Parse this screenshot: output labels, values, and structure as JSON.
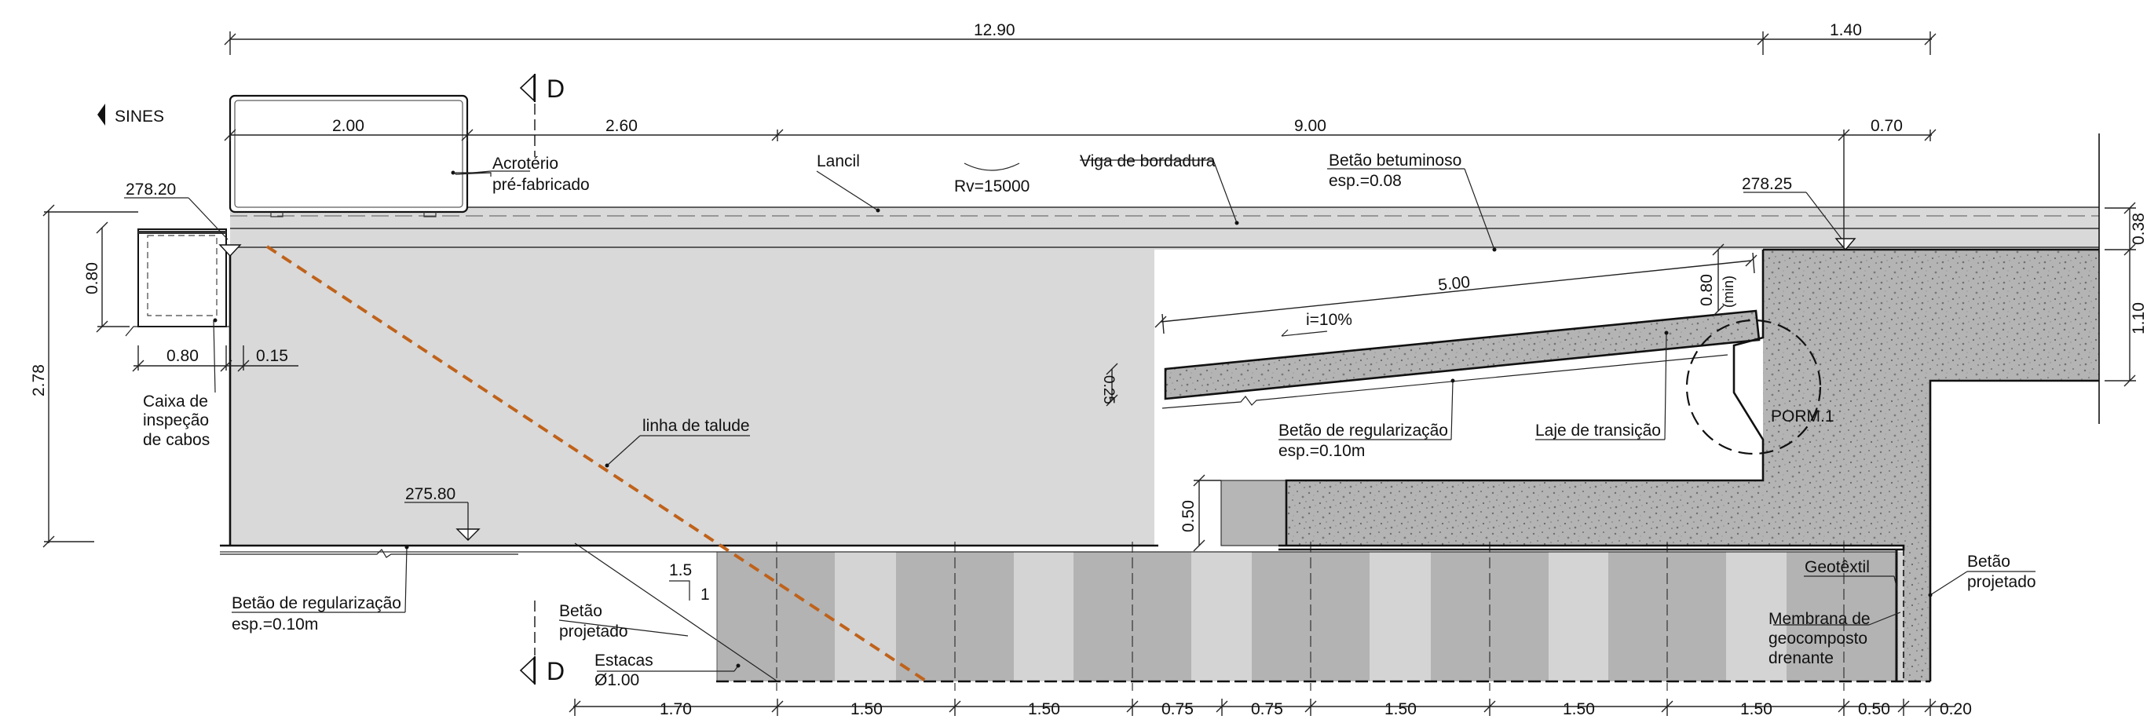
{
  "colors": {
    "fill": "#d9d9d9",
    "concrete": "#b0b0b0",
    "pile_dark": "#b3b3b3",
    "pile_light": "#d4d4d4",
    "slope_line": "#c0621a",
    "ink": "#111111"
  },
  "direction": {
    "label": "SINES"
  },
  "section_marker": {
    "top": "D",
    "bottom": "D"
  },
  "dimensions": {
    "top_12_90": "12.90",
    "top_1_40": "1.40",
    "w_2_00": "2.00",
    "w_2_60": "2.60",
    "w_9_00": "9.00",
    "w_0_70": "0.70",
    "h_2_78": "2.78",
    "h_0_80_box": "0.80",
    "w_0_80_box": "0.80",
    "w_0_15": "0.15",
    "h_0_38": "0.38",
    "h_1_10": "1.10",
    "slab_5_00": "5.00",
    "slab_0_80": "0.80",
    "slab_min": "(min)",
    "slab_0_25": "0.25",
    "h_0_50": "0.50",
    "bottom": [
      "1.70",
      "1.50",
      "1.50",
      "0.75",
      "0.75",
      "1.50",
      "1.50",
      "1.50",
      "0.50",
      "0.20"
    ]
  },
  "levels": {
    "l_278_20": "278.20",
    "l_278_25": "278.25",
    "l_275_80": "275.80"
  },
  "labels": {
    "acroterio_1": "Acrotério",
    "acroterio_2": "pré-fabricado",
    "lancil": "Lancil",
    "rv": "Rv=15000",
    "viga": "Viga de bordadura",
    "betao_betuminoso_1": "Betão betuminoso",
    "betao_betuminoso_2": "esp.=0.08",
    "slope": "i=10%",
    "caixa_1": "Caixa de",
    "caixa_2": "inspeção",
    "caixa_3": "de cabos",
    "linha_talude": "linha de talude",
    "regularizacao_slab_1": "Betão de regularização",
    "regularizacao_slab_2": "esp.=0.10m",
    "laje_transicao": "Laje de transição",
    "porm": "PORM.1",
    "regularizacao_base_1": "Betão de regularização",
    "regularizacao_base_2": "esp.=0.10m",
    "betao_projetado_left_1": "Betão",
    "betao_projetado_left_2": "projetado",
    "ratio_1_5": "1.5",
    "ratio_1": "1",
    "estacas_1": "Estacas",
    "estacas_2": "Ø1.00",
    "geotextil": "Geotêxtil",
    "membrana_1": "Membrana de",
    "membrana_2": "geocomposto",
    "membrana_3": "drenante",
    "betao_projetado_right_1": "Betão",
    "betao_projetado_right_2": "projetado"
  }
}
